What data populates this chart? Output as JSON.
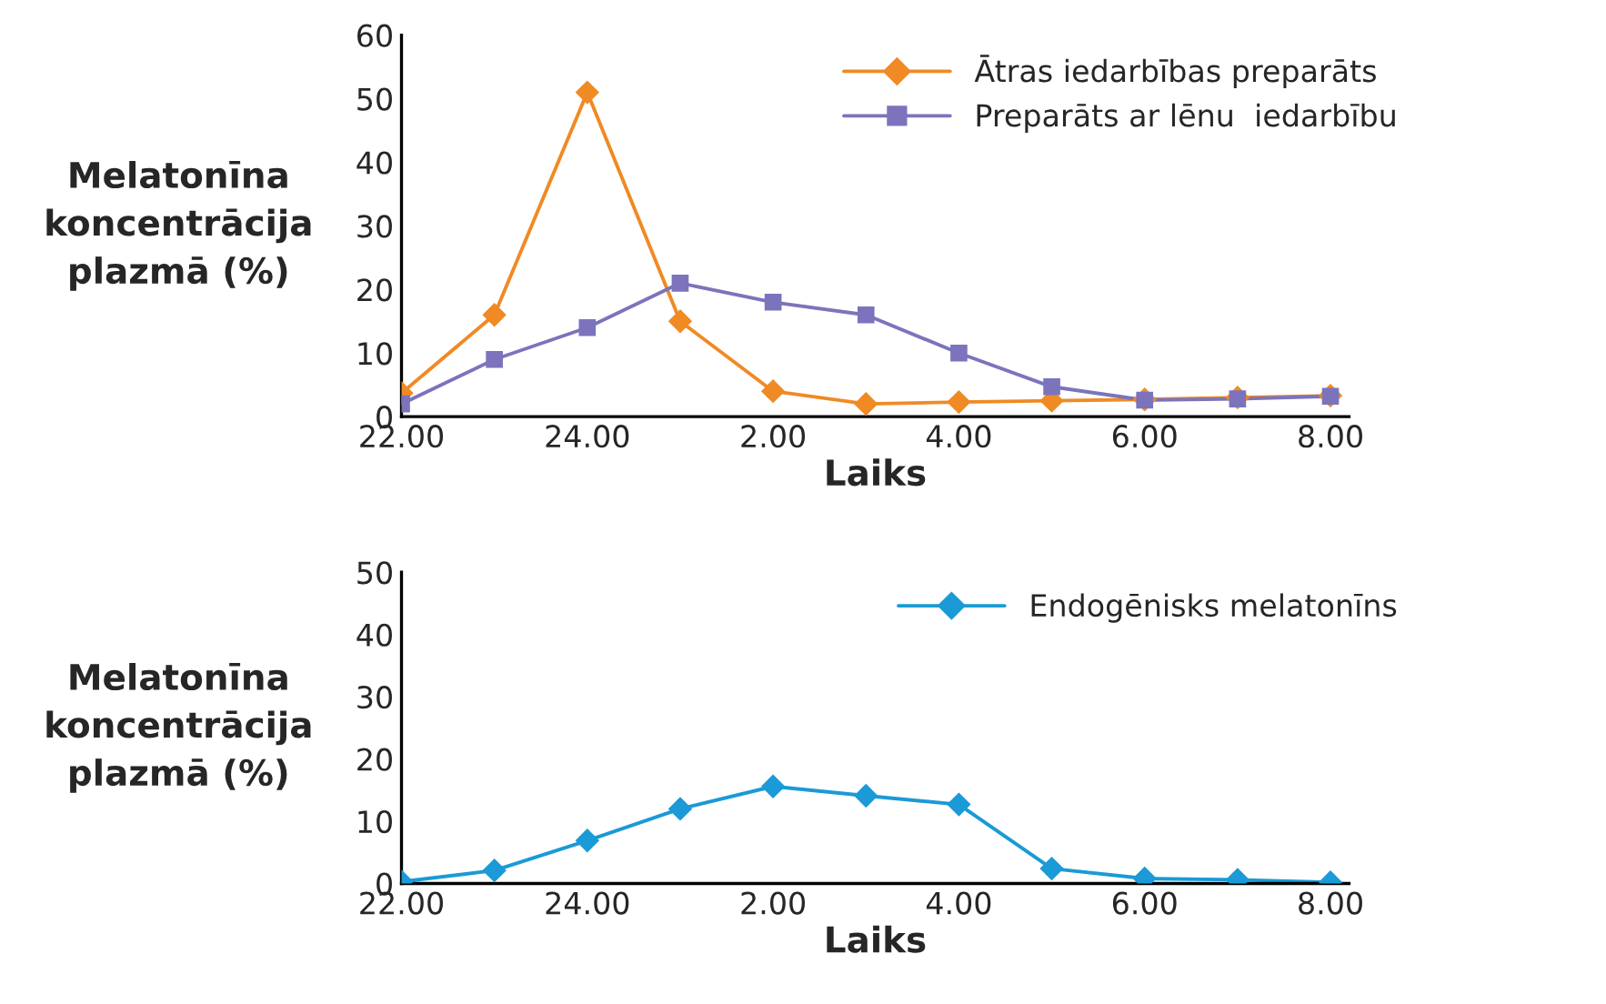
{
  "chart_data": [
    {
      "type": "line",
      "ylabel": "Melatonīna\nkoncentrācija\nplazmā (%)",
      "xlabel": "Laiks",
      "categories": [
        "22.00",
        null,
        "24.00",
        null,
        "2.00",
        null,
        "4.00",
        null,
        "6.00",
        null,
        "8.00"
      ],
      "series": [
        {
          "name": "Ātras iedarbības preparāts",
          "color": "#f08a24",
          "marker": "diamond",
          "values": [
            3.7,
            16,
            51,
            15,
            4,
            2,
            2.3,
            2.5,
            2.7,
            3,
            3.3
          ]
        },
        {
          "name": "Preparāts ar lēnu  iedarbību",
          "color": "#7b74bc",
          "marker": "square",
          "values": [
            2,
            9,
            14,
            21,
            18,
            16,
            10,
            4.7,
            2.6,
            2.8,
            3.2
          ]
        }
      ],
      "ylim": [
        0,
        60
      ],
      "yticks": [
        0,
        10,
        20,
        30,
        40,
        50,
        60
      ],
      "legend": "top right"
    },
    {
      "type": "line",
      "ylabel": "Melatonīna\nkoncentrācija\nplazmā (%)",
      "xlabel": "Laiks",
      "categories": [
        "22.00",
        null,
        "24.00",
        null,
        "2.00",
        null,
        "4.00",
        null,
        "6.00",
        null,
        "8.00"
      ],
      "series": [
        {
          "name": "Endogēnisks melatonīns",
          "color": "#1a9ad6",
          "marker": "diamond",
          "values": [
            0.3,
            2.1,
            6.9,
            12,
            15.6,
            14.1,
            12.7,
            2.4,
            0.8,
            0.6,
            0.2
          ]
        }
      ],
      "ylim": [
        0,
        50
      ],
      "yticks": [
        0,
        10,
        20,
        30,
        40,
        50
      ],
      "legend": "top right"
    }
  ]
}
